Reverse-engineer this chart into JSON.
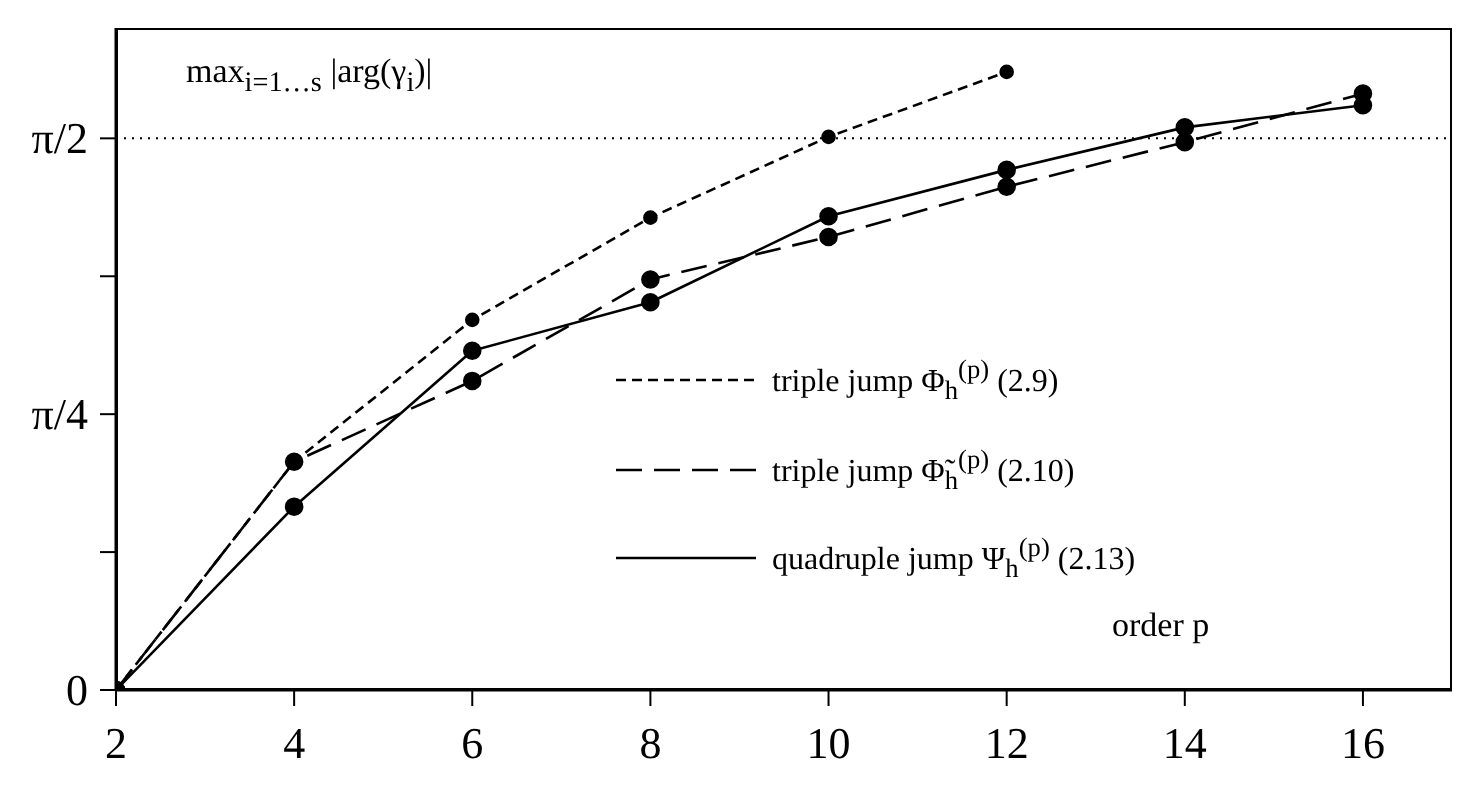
{
  "chart_data": {
    "type": "line",
    "xlabel": "order p",
    "ylabel": "max$_{i=1…s}$ |arg(γ$_{i}$)|",
    "xlim": [
      2,
      17
    ],
    "xticks": [
      2,
      4,
      6,
      8,
      10,
      12,
      14,
      16
    ],
    "ylim": [
      0,
      1.885
    ],
    "yticks": [
      0,
      {
        "value": 0.3927,
        "label": null
      },
      {
        "value": 0.7854,
        "label": "π/4"
      },
      {
        "value": 1.1781,
        "label": null
      },
      {
        "value": 1.5708,
        "label": "π/2"
      }
    ],
    "marker": "circle",
    "legend": "right",
    "ref_lines": [
      {
        "axis": "y",
        "value": 1.5708,
        "line_style": "dotted",
        "color": "#000000"
      }
    ],
    "series": [
      {
        "name": "triple jump Φ$_{h}$$^{(p)}$ (2.9)",
        "color": "#000000",
        "line_style": "dashed",
        "x": [
          2,
          4,
          6,
          8,
          10,
          12
        ],
        "values": [
          0,
          0.65,
          1.054,
          1.345,
          1.575,
          1.76
        ]
      },
      {
        "name": "triple jump Φ̃$_{h}$$^{(p)}$ (2.10)",
        "color": "#000000",
        "line_style": "dashed",
        "x": [
          2,
          4,
          6,
          8,
          10,
          12,
          14,
          16
        ],
        "values": [
          0,
          0.65,
          0.88,
          1.169,
          1.29,
          1.433,
          1.56,
          1.698
        ]
      },
      {
        "name": "quadruple jump Ψ$_{h}$$^{(p)}$ (2.13)",
        "color": "#000000",
        "line_style": "solid",
        "x": [
          2,
          4,
          6,
          8,
          10,
          12,
          14,
          16
        ],
        "values": [
          0,
          0.522,
          0.966,
          1.104,
          1.349,
          1.481,
          1.602,
          1.665
        ]
      }
    ]
  }
}
